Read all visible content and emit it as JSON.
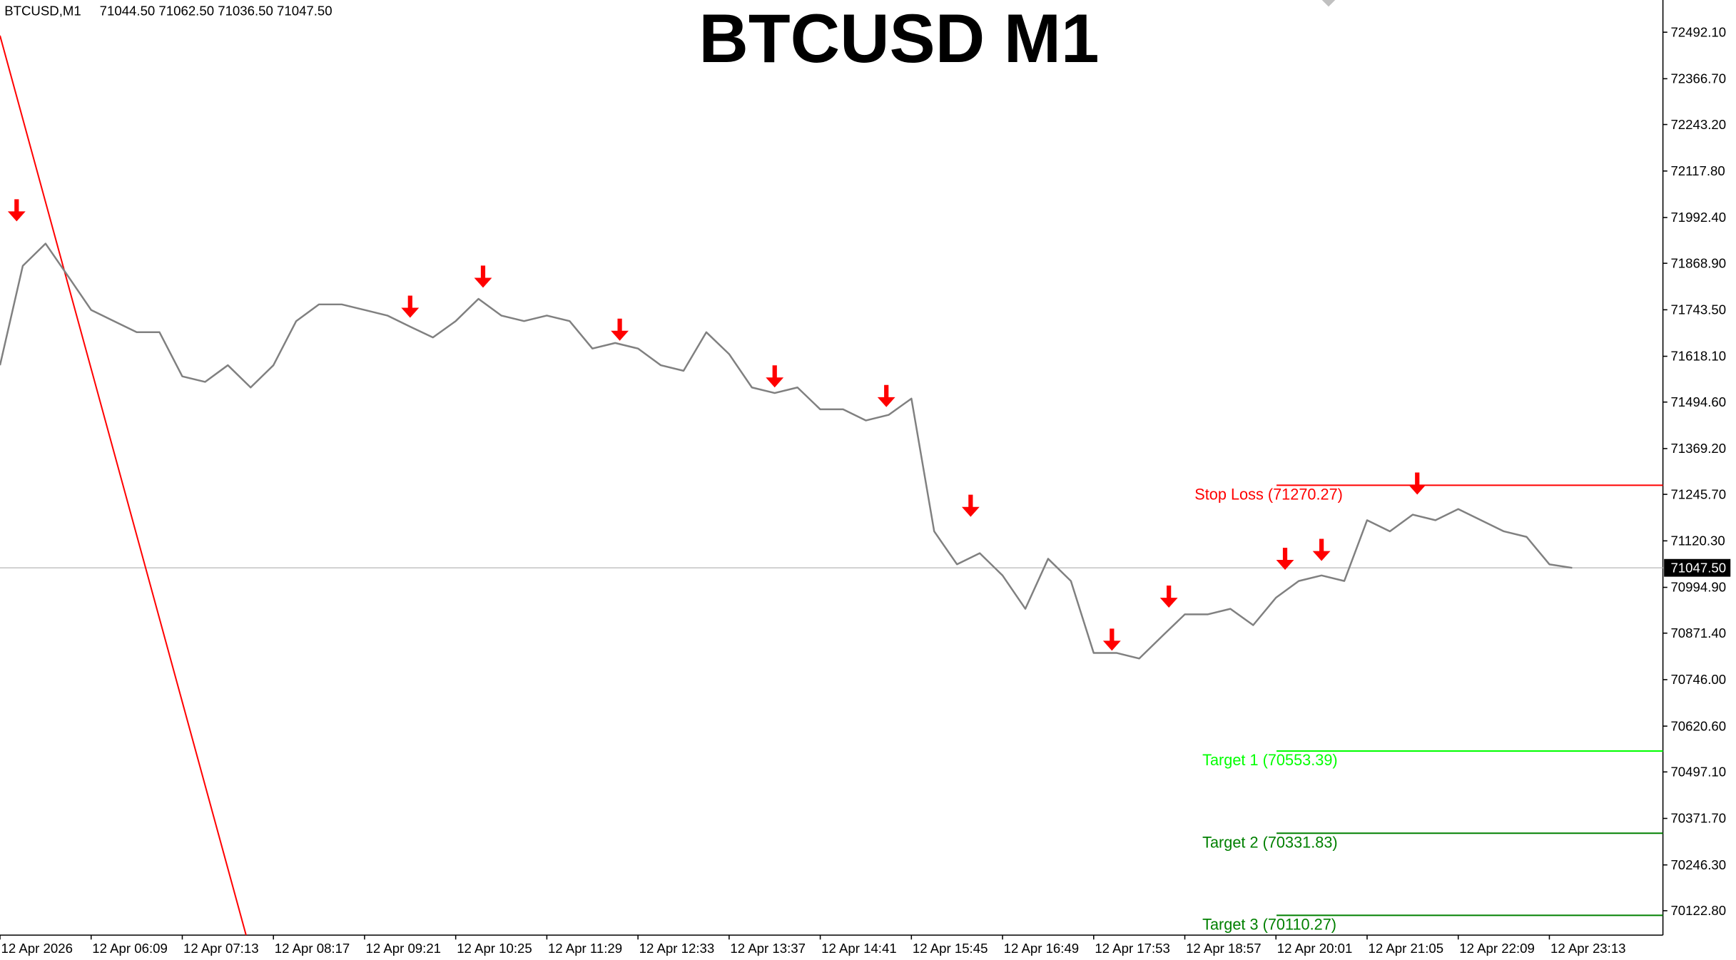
{
  "chart_data": {
    "type": "line",
    "title": "BTCUSD M1",
    "symbol": "BTCUSD,M1",
    "ohlc": "71044.50 71062.50 71036.50 71047.50",
    "color": "#808080",
    "categories": [
      "12 Apr 2026",
      null,
      null,
      null,
      "12 Apr 06:09",
      null,
      null,
      null,
      "12 Apr 07:13",
      null,
      null,
      null,
      "12 Apr 08:17",
      null,
      null,
      null,
      "12 Apr 09:21",
      null,
      null,
      null,
      "12 Apr 10:25",
      null,
      null,
      null,
      "12 Apr 11:29",
      null,
      null,
      null,
      "12 Apr 12:33",
      null,
      null,
      null,
      "12 Apr 13:37",
      null,
      null,
      null,
      "12 Apr 14:41",
      null,
      null,
      null,
      "12 Apr 15:45",
      null,
      null,
      null,
      "12 Apr 16:49",
      null,
      null,
      null,
      "12 Apr 17:53",
      null,
      null,
      null,
      "12 Apr 18:57",
      null,
      null,
      null,
      "12 Apr 20:01",
      null,
      null,
      null,
      "12 Apr 21:05",
      null,
      null,
      null,
      "12 Apr 22:09",
      null,
      null,
      null,
      "12 Apr 23:13",
      null
    ],
    "values": [
      71594,
      71862,
      71922,
      71833,
      71743,
      71713,
      71683,
      71683,
      71564,
      71549,
      71594,
      71534,
      71594,
      71713,
      71758,
      71758,
      71743,
      71728,
      71698,
      71669,
      71713,
      71773,
      71728,
      71713,
      71728,
      71713,
      71639,
      71654,
      71639,
      71594,
      71579,
      71683,
      71624,
      71534,
      71519,
      71534,
      71475,
      71475,
      71445,
      71460,
      71504,
      71146,
      71057,
      71087,
      71027,
      70937,
      71072,
      71012,
      70818,
      70818,
      70803,
      70863,
      70922,
      70922,
      70937,
      70893,
      70967,
      71012,
      71027,
      71012,
      71176,
      71146,
      71191,
      71176,
      71206,
      71176,
      71146,
      71131,
      71057,
      71047.5
    ],
    "ylim": [
      70057,
      72579
    ],
    "yticks": [
      {
        "value": 72492.1,
        "label": "72492.10"
      },
      {
        "value": 72366.7,
        "label": "72366.70"
      },
      {
        "value": 72243.2,
        "label": "72243.20"
      },
      {
        "value": 72117.8,
        "label": "72117.80"
      },
      {
        "value": 71992.4,
        "label": "71992.40"
      },
      {
        "value": 71868.9,
        "label": "71868.90"
      },
      {
        "value": 71743.5,
        "label": "71743.50"
      },
      {
        "value": 71618.1,
        "label": "71618.10"
      },
      {
        "value": 71494.6,
        "label": "71494.60"
      },
      {
        "value": 71369.2,
        "label": "71369.20"
      },
      {
        "value": 71245.7,
        "label": "71245.70"
      },
      {
        "value": 71120.3,
        "label": "71120.30"
      },
      {
        "value": 70994.9,
        "label": "70994.90"
      },
      {
        "value": 70871.4,
        "label": "70871.40"
      },
      {
        "value": 70746.0,
        "label": "70746.00"
      },
      {
        "value": 70620.6,
        "label": "70620.60"
      },
      {
        "value": 70497.1,
        "label": "70497.10"
      },
      {
        "value": 70371.7,
        "label": "70371.70"
      },
      {
        "value": 70246.3,
        "label": "70246.30"
      },
      {
        "value": 70122.8,
        "label": "70122.80"
      }
    ],
    "current_price": {
      "value": 71047.5,
      "label": "71047.50"
    },
    "levels": [
      {
        "label": "Stop Loss (71270.27)",
        "value": 71270.27,
        "color": "#ff0000"
      },
      {
        "label": "Target 1 (70553.39)",
        "value": 70553.39,
        "color": "#00ff00"
      },
      {
        "label": "Target 2 (70331.83)",
        "value": 70331.83,
        "color": "#008000"
      },
      {
        "label": "Target 3 (70110.27)",
        "value": 70110.27,
        "color": "#008000"
      }
    ],
    "signals": {
      "color": "#ff0000",
      "x": [
        0.73,
        18.0,
        21.2,
        27.2,
        34.0,
        38.9,
        42.6,
        48.8,
        51.3,
        56.4,
        58.0,
        62.2
      ],
      "y": [
        71982,
        71722,
        71803,
        71660,
        71534,
        71481,
        71185,
        70824,
        70940,
        71042,
        71066,
        71245
      ]
    },
    "trendline": {
      "color": "#ff0000",
      "x": [
        0,
        10.8
      ],
      "y": [
        72483,
        70057
      ]
    }
  }
}
